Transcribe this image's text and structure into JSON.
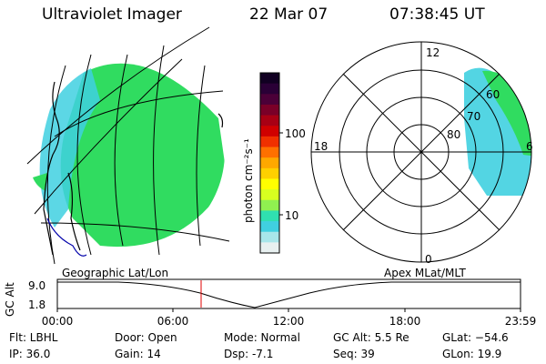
{
  "header": {
    "title": "Ultraviolet Imager",
    "date": "22 Mar 07",
    "time": "07:38:45 UT"
  },
  "colorbar": {
    "label": "photon cm⁻²s⁻¹",
    "ticks": [
      "100",
      "10"
    ],
    "colors": [
      "#110022",
      "#2a0036",
      "#4b0038",
      "#7a0028",
      "#a80014",
      "#d00000",
      "#f03000",
      "#ff7000",
      "#ffa800",
      "#ffd000",
      "#ffff00",
      "#d8ff20",
      "#90f050",
      "#30e0b0",
      "#40d0e0",
      "#a8e6ea",
      "#e8f0f0"
    ]
  },
  "geo_map": {
    "label": "Geographic Lat/Lon",
    "colors": {
      "fill": "#30dc60",
      "edge": "#40d0e0",
      "outline": "#000000",
      "coast": "#0000aa"
    }
  },
  "polar_plot": {
    "label": "Apex MLat/MLT",
    "lat_labels": [
      "80",
      "70",
      "60"
    ],
    "mlt_labels": {
      "top": "12",
      "right": "6",
      "bottom": "0",
      "left": "18"
    },
    "colors": {
      "fill": "#30dc60",
      "edge": "#40d0e0"
    }
  },
  "altitude_panel": {
    "ylabel": "GC Alt",
    "y_ticks": [
      "9.0",
      "1.8"
    ],
    "x_ticks": [
      "00:00",
      "06:00",
      "12:00",
      "18:00",
      "23:59"
    ],
    "marker_color": "#e00000"
  },
  "info": {
    "flt": "Flt: LBHL",
    "ip": "IP: 36.0",
    "door": "Door: Open",
    "gain": "Gain: 14",
    "mode": "Mode: Normal",
    "dsp": "Dsp:    -7.1",
    "gcalt": "GC Alt: 5.5 Re",
    "seq": "Seq: 39",
    "glat": "GLat: −54.6",
    "glon": "GLon:  19.9"
  }
}
